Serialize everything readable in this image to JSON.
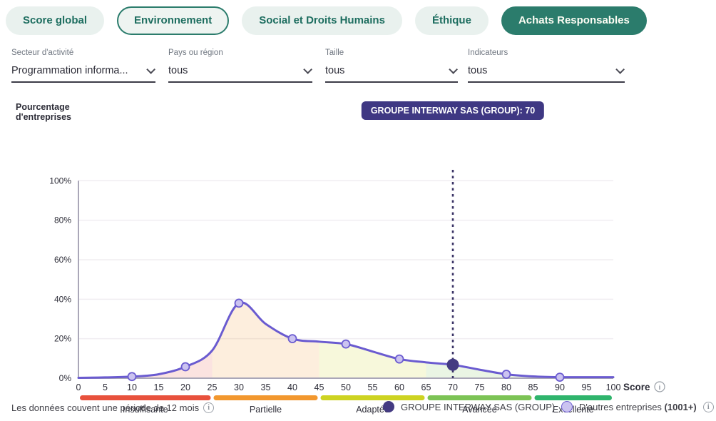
{
  "tabs": [
    {
      "label": "Score global",
      "selected": false
    },
    {
      "label": "Environnement",
      "selected": false,
      "outlined": true
    },
    {
      "label": "Social et Droits Humains",
      "selected": false
    },
    {
      "label": "Éthique",
      "selected": false
    },
    {
      "label": "Achats Responsables",
      "selected": true
    }
  ],
  "filters": [
    {
      "label": "Secteur d'activité",
      "value": "Programmation informa..."
    },
    {
      "label": "Pays ou région",
      "value": "tous"
    },
    {
      "label": "Taille",
      "value": "tous"
    },
    {
      "label": "Indicateurs",
      "value": "tous"
    }
  ],
  "chart": {
    "y_axis_title": "Pourcentage d'entreprises",
    "tooltip": "GROUPE INTERWAY SAS (GROUP): 70"
  },
  "chart_data": {
    "type": "area",
    "title": "",
    "xlabel": "Score",
    "ylabel": "Pourcentage d'entreprises",
    "xlim": [
      0,
      100
    ],
    "ylim": [
      0,
      100
    ],
    "x_ticks": [
      0,
      5,
      10,
      15,
      20,
      25,
      30,
      35,
      40,
      45,
      50,
      55,
      60,
      65,
      70,
      75,
      80,
      85,
      90,
      95,
      100
    ],
    "y_ticks": [
      0,
      20,
      40,
      60,
      80,
      100
    ],
    "y_tick_suffix": "%",
    "grid": "horizontal",
    "x": [
      0,
      5,
      10,
      15,
      20,
      25,
      30,
      35,
      40,
      45,
      50,
      55,
      60,
      65,
      70,
      75,
      80,
      85,
      90,
      95,
      100
    ],
    "series": [
      {
        "name": "D'autres entreprises (1001+)",
        "values": [
          0.2,
          0.4,
          0.8,
          2,
          5.8,
          14,
          38,
          27.5,
          20,
          18.5,
          17.3,
          13.5,
          9.7,
          8,
          6.8,
          4.3,
          2,
          0.9,
          0.5,
          0.5,
          0.5
        ]
      }
    ],
    "marker_x": [
      10,
      20,
      30,
      40,
      50,
      60,
      70,
      80,
      90
    ],
    "highlight": {
      "name": "GROUPE INTERWAY SAS (GROUP)",
      "score": 70,
      "value": 6.8
    },
    "zones": [
      {
        "label": "Insuffisante",
        "from": 0,
        "to": 25,
        "color": "#e8513c"
      },
      {
        "label": "Partielle",
        "from": 25,
        "to": 45,
        "color": "#f2972e"
      },
      {
        "label": "Adaptée",
        "from": 45,
        "to": 65,
        "color": "#cdd321"
      },
      {
        "label": "Avancée",
        "from": 65,
        "to": 85,
        "color": "#7cc355"
      },
      {
        "label": "Excellente",
        "from": 85,
        "to": 100,
        "color": "#2fb46c"
      }
    ],
    "colors": {
      "line": "#6a5bd0",
      "marker_fill": "#cbc3f0",
      "highlight": "#443b82",
      "dashed_line": "#3a3366",
      "gridline": "#f0edf1",
      "axis": "#aaa7b8",
      "tick_text": "#2d2d38",
      "zone_fill_opacity": 0.16
    }
  },
  "footer": {
    "note": "Les données couvent une période de 12 mois",
    "legend": [
      {
        "label": "GROUPE INTERWAY SAS (GROUP)",
        "swatch": "#443b82"
      },
      {
        "label": "D'autres entreprises",
        "suffix": "(1001+)",
        "swatch": "#cbc3f0"
      }
    ]
  },
  "icons": {
    "info": "i"
  }
}
